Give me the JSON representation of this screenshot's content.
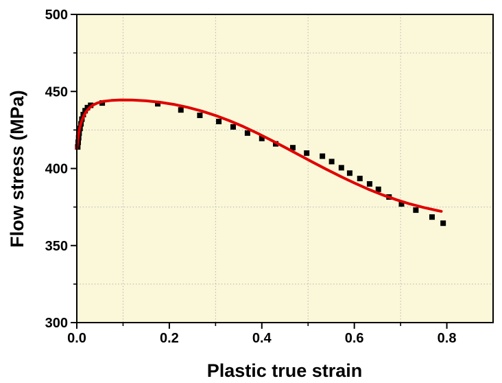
{
  "chart_data": {
    "type": "scatter",
    "title": "",
    "xlabel": "Plastic true strain",
    "ylabel": "Flow stress (MPa)",
    "xlim": [
      0.0,
      0.9
    ],
    "ylim": [
      300,
      500
    ],
    "x_ticks": [
      {
        "v": 0.0,
        "label": "0.0"
      },
      {
        "v": 0.2,
        "label": "0.2"
      },
      {
        "v": 0.4,
        "label": "0.4"
      },
      {
        "v": 0.6,
        "label": "0.6"
      },
      {
        "v": 0.8,
        "label": "0.8"
      }
    ],
    "x_minor_ticks": [
      0.1,
      0.3,
      0.5,
      0.7
    ],
    "y_ticks": [
      {
        "v": 300,
        "label": "300"
      },
      {
        "v": 350,
        "label": "350"
      },
      {
        "v": 400,
        "label": "400"
      },
      {
        "v": 450,
        "label": "450"
      },
      {
        "v": 500,
        "label": "500"
      }
    ],
    "y_minor_ticks": [
      325,
      375,
      425,
      475
    ],
    "grid": {
      "style": "dotted",
      "at": "minor-ticks",
      "color": "#b0b0b0"
    },
    "legend": "none",
    "colors": {
      "plot_bg": "#fbf8da",
      "outer_bg": "#ffffff",
      "curve": "#e00000",
      "marker": "#000000",
      "frame": "#000000",
      "grid": "#b0b0b0"
    },
    "series": [
      {
        "name": "experimental-flow-stress",
        "type": "scatter",
        "marker": "filled-square",
        "marker_size": 8,
        "points": [
          [
            0.002,
            414
          ],
          [
            0.003,
            417
          ],
          [
            0.004,
            420
          ],
          [
            0.005,
            423
          ],
          [
            0.007,
            426
          ],
          [
            0.009,
            429
          ],
          [
            0.011,
            432
          ],
          [
            0.014,
            435
          ],
          [
            0.018,
            437.5
          ],
          [
            0.023,
            439.5
          ],
          [
            0.03,
            441
          ],
          [
            0.055,
            442.5
          ],
          [
            0.175,
            442
          ],
          [
            0.225,
            438
          ],
          [
            0.266,
            434.5
          ],
          [
            0.307,
            430.5
          ],
          [
            0.338,
            427
          ],
          [
            0.369,
            423
          ],
          [
            0.4,
            419.5
          ],
          [
            0.43,
            416
          ],
          [
            0.467,
            413.5
          ],
          [
            0.497,
            410
          ],
          [
            0.531,
            408
          ],
          [
            0.551,
            404.5
          ],
          [
            0.572,
            400.5
          ],
          [
            0.59,
            397
          ],
          [
            0.612,
            393.5
          ],
          [
            0.633,
            390
          ],
          [
            0.652,
            386.5
          ],
          [
            0.675,
            381.5
          ],
          [
            0.702,
            377
          ],
          [
            0.733,
            373
          ],
          [
            0.768,
            368.5
          ],
          [
            0.792,
            364.5
          ]
        ]
      },
      {
        "name": "fitted-model-curve",
        "type": "line",
        "stroke_width": 4,
        "points": [
          [
            0.0,
            413
          ],
          [
            0.002,
            418
          ],
          [
            0.004,
            422.5
          ],
          [
            0.006,
            426
          ],
          [
            0.009,
            429.5
          ],
          [
            0.012,
            432
          ],
          [
            0.016,
            434.8
          ],
          [
            0.021,
            437.2
          ],
          [
            0.027,
            439.3
          ],
          [
            0.035,
            441.2
          ],
          [
            0.045,
            442.6
          ],
          [
            0.058,
            443.6
          ],
          [
            0.075,
            444.2
          ],
          [
            0.095,
            444.5
          ],
          [
            0.12,
            444.4
          ],
          [
            0.15,
            443.9
          ],
          [
            0.18,
            443.0
          ],
          [
            0.21,
            441.6
          ],
          [
            0.24,
            439.7
          ],
          [
            0.27,
            437.3
          ],
          [
            0.3,
            434.4
          ],
          [
            0.33,
            431.0
          ],
          [
            0.36,
            427.2
          ],
          [
            0.39,
            423.0
          ],
          [
            0.42,
            418.4
          ],
          [
            0.45,
            413.7
          ],
          [
            0.48,
            408.9
          ],
          [
            0.51,
            404.1
          ],
          [
            0.54,
            399.4
          ],
          [
            0.57,
            394.9
          ],
          [
            0.6,
            390.6
          ],
          [
            0.63,
            386.6
          ],
          [
            0.66,
            383.0
          ],
          [
            0.69,
            379.8
          ],
          [
            0.72,
            377.0
          ],
          [
            0.75,
            374.7
          ],
          [
            0.775,
            373.0
          ],
          [
            0.788,
            372.2
          ]
        ]
      }
    ]
  }
}
